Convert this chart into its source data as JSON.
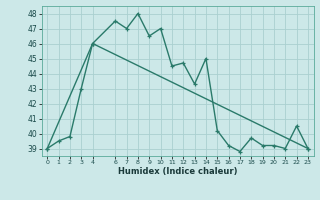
{
  "xlabel": "Humidex (Indice chaleur)",
  "bg_color": "#cce8e8",
  "grid_color": "#aad0d0",
  "line_color": "#2a7a6a",
  "xlim": [
    -0.5,
    23.5
  ],
  "ylim": [
    38.5,
    48.5
  ],
  "xticks": [
    0,
    1,
    2,
    3,
    4,
    6,
    7,
    8,
    9,
    10,
    11,
    12,
    13,
    14,
    15,
    16,
    17,
    18,
    19,
    20,
    21,
    22,
    23
  ],
  "yticks": [
    39,
    40,
    41,
    42,
    43,
    44,
    45,
    46,
    47,
    48
  ],
  "series1_x": [
    0,
    1,
    2,
    3,
    4,
    6,
    7,
    8,
    9,
    10,
    11,
    12,
    13,
    14,
    15,
    16,
    17,
    18,
    19,
    20,
    21,
    22,
    23
  ],
  "series1_y": [
    39,
    39.5,
    39.8,
    43,
    46,
    47.5,
    47,
    48,
    46.5,
    47,
    44.5,
    44.7,
    43.3,
    45.0,
    40.2,
    39.2,
    38.8,
    39.7,
    39.2,
    39.2,
    39.0,
    40.5,
    39.0
  ],
  "series2_x": [
    0,
    4,
    23
  ],
  "series2_y": [
    39,
    46,
    39
  ]
}
